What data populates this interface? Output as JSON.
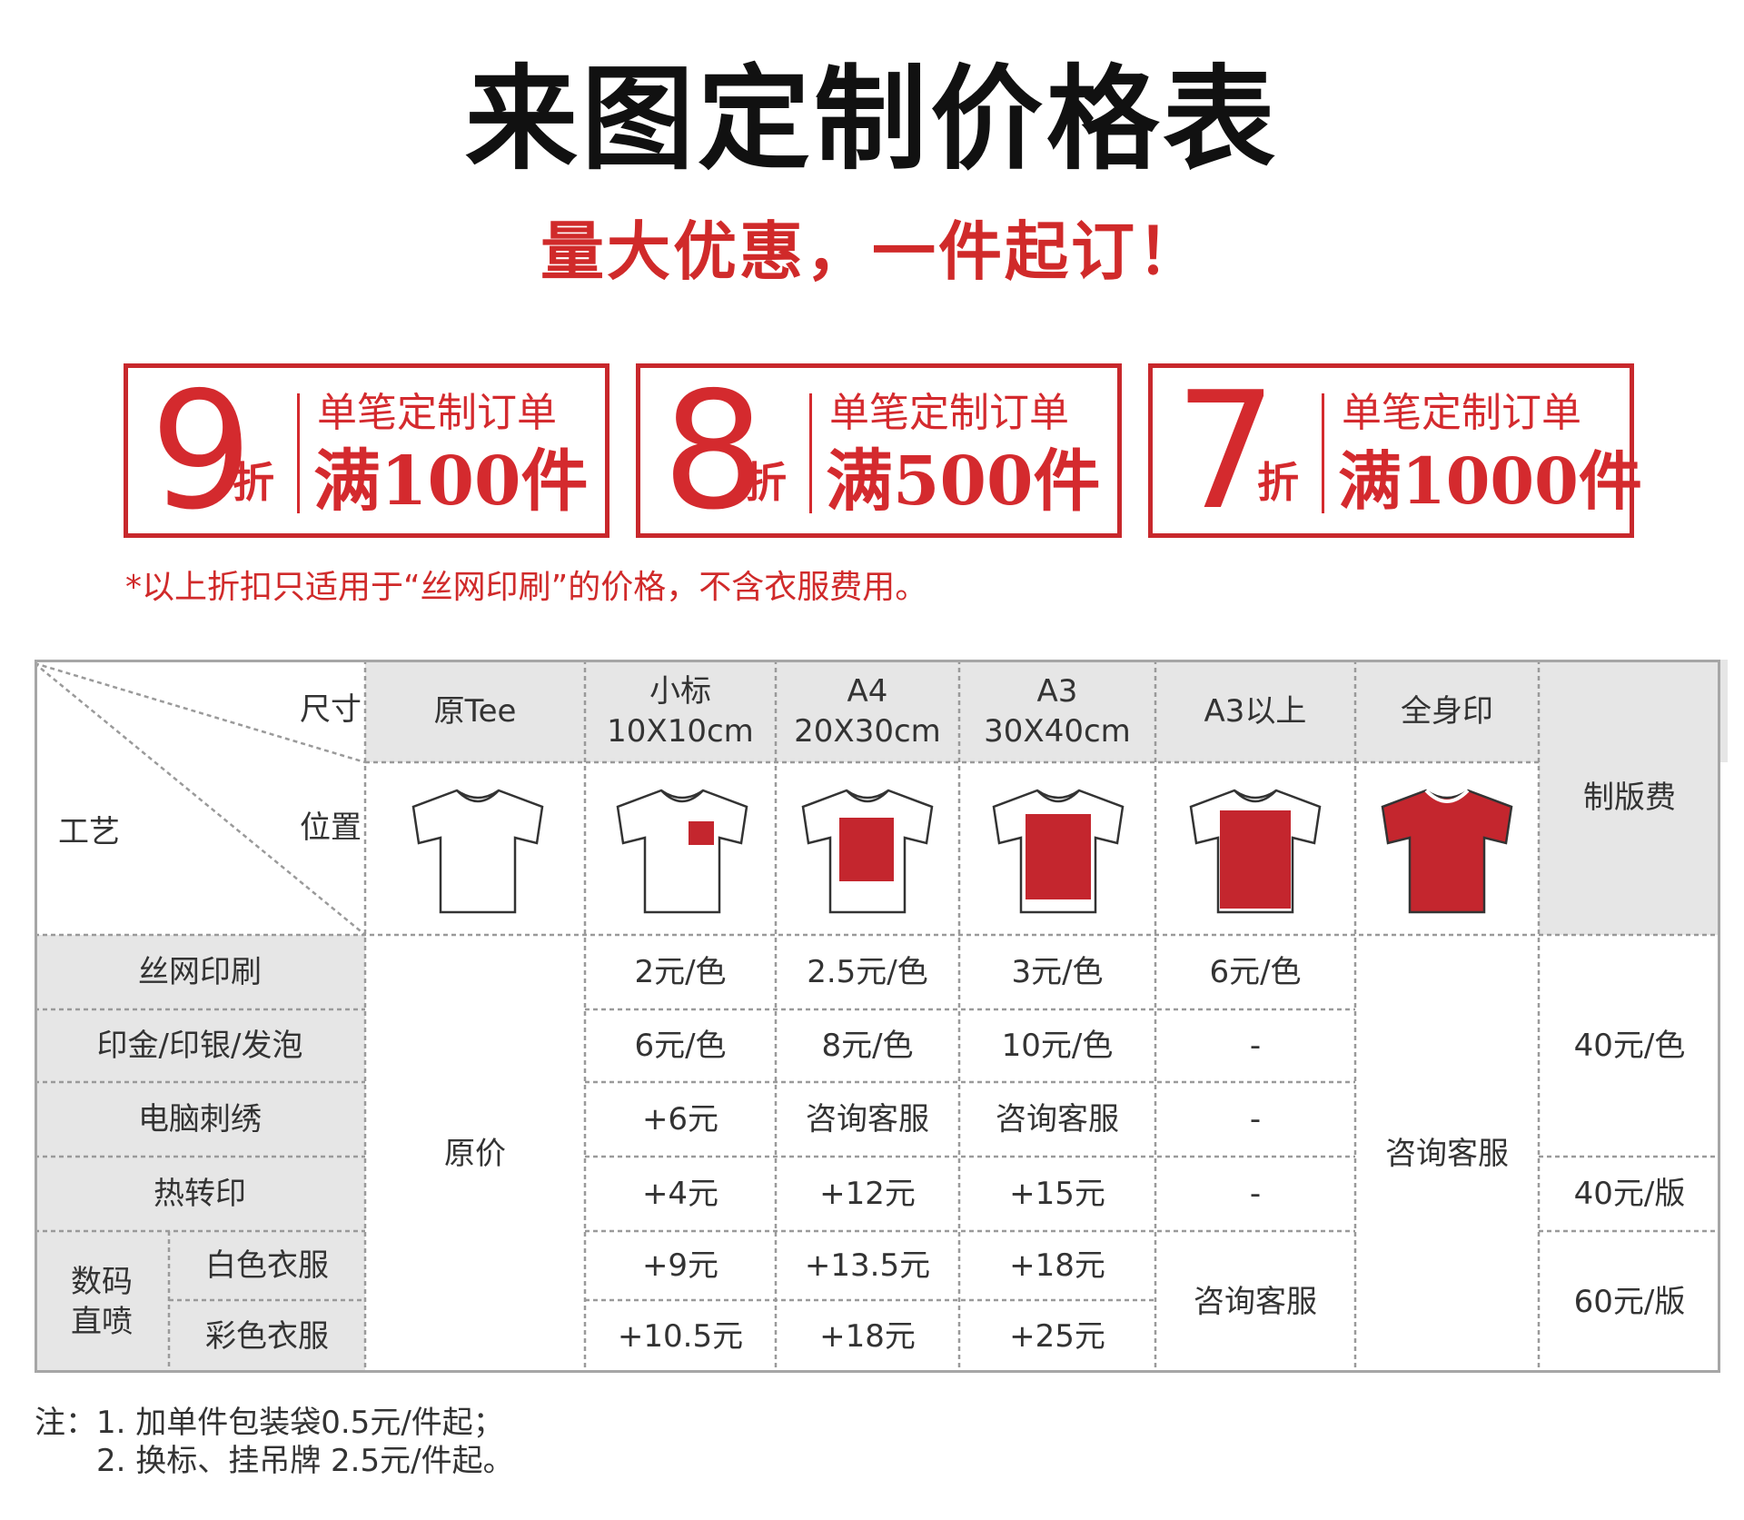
{
  "title": "来图定制价格表",
  "subtitle": "量大优惠，一件起订！",
  "discounts": [
    {
      "number": "9",
      "unit": "折",
      "line1": "单笔定制订单",
      "line2": "满100件"
    },
    {
      "number": "8",
      "unit": "折",
      "line1": "单笔定制订单",
      "line2": "满500件"
    },
    {
      "number": "7",
      "unit": "折",
      "line1": "单笔定制订单",
      "line2": "满1000件"
    }
  ],
  "disclaimer": "*以上折扣只适用于“丝网印刷”的价格，不含衣服费用。",
  "table": {
    "corner": {
      "size_label": "尺寸",
      "position_label": "位置",
      "craft_label": "工艺"
    },
    "columns": [
      {
        "line1": "原Tee",
        "line2": ""
      },
      {
        "line1": "小标",
        "line2": "10X10cm"
      },
      {
        "line1": "A4",
        "line2": "20X30cm"
      },
      {
        "line1": "A3",
        "line2": "30X40cm"
      },
      {
        "line1": "A3以上",
        "line2": ""
      },
      {
        "line1": "全身印",
        "line2": ""
      }
    ],
    "plate_fee_header": "制版费",
    "rows": [
      {
        "label": "丝网印刷",
        "xiao": "2元/色",
        "a4": "2.5元/色",
        "a3": "3元/色",
        "a3plus": "6元/色"
      },
      {
        "label": "印金/印银/发泡",
        "xiao": "6元/色",
        "a4": "8元/色",
        "a3": "10元/色",
        "a3plus": "-"
      },
      {
        "label": "电脑刺绣",
        "xiao": "+6元",
        "a4": "咨询客服",
        "a3": "咨询客服",
        "a3plus": "-"
      },
      {
        "label": "热转印",
        "xiao": "+4元",
        "a4": "+12元",
        "a3": "+15元",
        "a3plus": "-"
      },
      {
        "label": "白色衣服",
        "xiao": "+9元",
        "a4": "+13.5元",
        "a3": "+18元"
      },
      {
        "label": "彩色衣服",
        "xiao": "+10.5元",
        "a4": "+18元",
        "a3": "+25元"
      }
    ],
    "digital_group_label": "数码\n直喷",
    "original_price": "原价",
    "digital_a3plus": "咨询客服",
    "fullbody_price": "咨询客服",
    "plate_fees": {
      "screen_and_gold": "40元/色",
      "heat_transfer": "40元/版",
      "digital": "60元/版"
    },
    "colors": {
      "print_red": "#c4262e",
      "shirt_outline": "#333333",
      "header_gray": "#e6e6e6"
    }
  },
  "notes": [
    "注：1. 加单件包装袋0.5元/件起；",
    "2. 换标、挂吊牌 2.5元/件起。"
  ]
}
